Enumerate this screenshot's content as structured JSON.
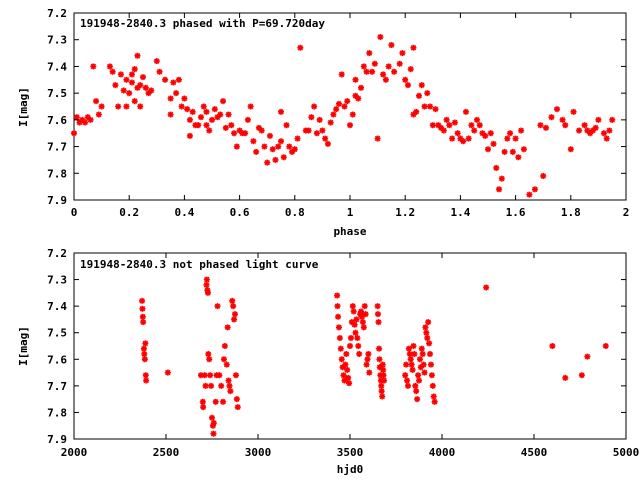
{
  "chart_data": [
    {
      "type": "scatter",
      "title": "191948-2840.3 phased with P=69.720day",
      "xlabel": "phase",
      "ylabel": "I[mag]",
      "xlim": [
        0,
        2
      ],
      "ylim": [
        7.9,
        7.2
      ],
      "y_inverted": true,
      "grid": false,
      "xticks": [
        0,
        0.2,
        0.4,
        0.6,
        0.8,
        1,
        1.2,
        1.4,
        1.6,
        1.8,
        2
      ],
      "yticks": [
        7.2,
        7.3,
        7.4,
        7.5,
        7.6,
        7.7,
        7.8,
        7.9
      ],
      "xtick_labels": [
        "0",
        "0.2",
        "0.4",
        "0.6",
        "0.8",
        "1",
        "1.2",
        "1.4",
        "1.6",
        "1.8",
        "2"
      ],
      "ytick_labels": [
        "7.2",
        "7.3",
        "7.4",
        "7.5",
        "7.6",
        "7.7",
        "7.8",
        "7.9"
      ],
      "marker_color": "#ff0000",
      "points": [
        [
          0.0,
          7.65
        ],
        [
          0.01,
          7.59
        ],
        [
          0.02,
          7.61
        ],
        [
          0.03,
          7.6
        ],
        [
          0.04,
          7.61
        ],
        [
          0.05,
          7.59
        ],
        [
          0.06,
          7.6
        ],
        [
          0.07,
          7.4
        ],
        [
          0.08,
          7.53
        ],
        [
          0.09,
          7.58
        ],
        [
          0.1,
          7.55
        ],
        [
          0.13,
          7.4
        ],
        [
          0.14,
          7.42
        ],
        [
          0.15,
          7.47
        ],
        [
          0.16,
          7.55
        ],
        [
          0.17,
          7.43
        ],
        [
          0.18,
          7.49
        ],
        [
          0.19,
          7.55
        ],
        [
          0.19,
          7.45
        ],
        [
          0.2,
          7.5
        ],
        [
          0.21,
          7.43
        ],
        [
          0.21,
          7.46
        ],
        [
          0.22,
          7.41
        ],
        [
          0.22,
          7.53
        ],
        [
          0.23,
          7.48
        ],
        [
          0.23,
          7.36
        ],
        [
          0.24,
          7.47
        ],
        [
          0.24,
          7.55
        ],
        [
          0.25,
          7.44
        ],
        [
          0.26,
          7.48
        ],
        [
          0.27,
          7.5
        ],
        [
          0.28,
          7.49
        ],
        [
          0.3,
          7.38
        ],
        [
          0.31,
          7.42
        ],
        [
          0.33,
          7.45
        ],
        [
          0.35,
          7.52
        ],
        [
          0.35,
          7.58
        ],
        [
          0.36,
          7.46
        ],
        [
          0.37,
          7.5
        ],
        [
          0.38,
          7.45
        ],
        [
          0.39,
          7.55
        ],
        [
          0.4,
          7.52
        ],
        [
          0.41,
          7.56
        ],
        [
          0.42,
          7.6
        ],
        [
          0.42,
          7.66
        ],
        [
          0.43,
          7.57
        ],
        [
          0.44,
          7.62
        ],
        [
          0.45,
          7.62
        ],
        [
          0.46,
          7.59
        ],
        [
          0.47,
          7.55
        ],
        [
          0.48,
          7.57
        ],
        [
          0.48,
          7.62
        ],
        [
          0.49,
          7.64
        ],
        [
          0.5,
          7.6
        ],
        [
          0.51,
          7.56
        ],
        [
          0.52,
          7.59
        ],
        [
          0.53,
          7.58
        ],
        [
          0.54,
          7.53
        ],
        [
          0.55,
          7.63
        ],
        [
          0.56,
          7.58
        ],
        [
          0.57,
          7.62
        ],
        [
          0.58,
          7.65
        ],
        [
          0.59,
          7.7
        ],
        [
          0.6,
          7.64
        ],
        [
          0.61,
          7.65
        ],
        [
          0.62,
          7.65
        ],
        [
          0.63,
          7.6
        ],
        [
          0.64,
          7.55
        ],
        [
          0.65,
          7.68
        ],
        [
          0.66,
          7.72
        ],
        [
          0.67,
          7.63
        ],
        [
          0.68,
          7.64
        ],
        [
          0.69,
          7.7
        ],
        [
          0.7,
          7.76
        ],
        [
          0.71,
          7.66
        ],
        [
          0.72,
          7.71
        ],
        [
          0.73,
          7.75
        ],
        [
          0.74,
          7.7
        ],
        [
          0.75,
          7.68
        ],
        [
          0.75,
          7.57
        ],
        [
          0.76,
          7.74
        ],
        [
          0.77,
          7.62
        ],
        [
          0.78,
          7.7
        ],
        [
          0.79,
          7.72
        ],
        [
          0.8,
          7.71
        ],
        [
          0.81,
          7.67
        ],
        [
          0.82,
          7.33
        ],
        [
          0.84,
          7.64
        ],
        [
          0.85,
          7.64
        ],
        [
          0.86,
          7.59
        ],
        [
          0.87,
          7.55
        ],
        [
          0.88,
          7.65
        ],
        [
          0.89,
          7.6
        ],
        [
          0.9,
          7.64
        ],
        [
          0.91,
          7.67
        ],
        [
          0.92,
          7.69
        ],
        [
          0.93,
          7.61
        ],
        [
          0.94,
          7.58
        ],
        [
          0.95,
          7.56
        ],
        [
          0.96,
          7.54
        ],
        [
          0.97,
          7.43
        ],
        [
          0.98,
          7.55
        ],
        [
          0.99,
          7.53
        ],
        [
          1.0,
          7.62
        ],
        [
          1.01,
          7.58
        ],
        [
          1.02,
          7.51
        ],
        [
          1.02,
          7.45
        ],
        [
          1.03,
          7.52
        ],
        [
          1.04,
          7.48
        ],
        [
          1.05,
          7.4
        ],
        [
          1.06,
          7.42
        ],
        [
          1.07,
          7.35
        ],
        [
          1.08,
          7.42
        ],
        [
          1.09,
          7.39
        ],
        [
          1.1,
          7.67
        ],
        [
          1.11,
          7.29
        ],
        [
          1.12,
          7.43
        ],
        [
          1.13,
          7.45
        ],
        [
          1.14,
          7.4
        ],
        [
          1.15,
          7.32
        ],
        [
          1.16,
          7.42
        ],
        [
          1.18,
          7.39
        ],
        [
          1.19,
          7.35
        ],
        [
          1.2,
          7.45
        ],
        [
          1.21,
          7.47
        ],
        [
          1.22,
          7.41
        ],
        [
          1.23,
          7.58
        ],
        [
          1.23,
          7.33
        ],
        [
          1.24,
          7.57
        ],
        [
          1.25,
          7.51
        ],
        [
          1.26,
          7.47
        ],
        [
          1.27,
          7.55
        ],
        [
          1.28,
          7.5
        ],
        [
          1.29,
          7.55
        ],
        [
          1.3,
          7.62
        ],
        [
          1.31,
          7.56
        ],
        [
          1.32,
          7.62
        ],
        [
          1.33,
          7.63
        ],
        [
          1.34,
          7.64
        ],
        [
          1.35,
          7.6
        ],
        [
          1.36,
          7.62
        ],
        [
          1.37,
          7.67
        ],
        [
          1.38,
          7.61
        ],
        [
          1.39,
          7.65
        ],
        [
          1.4,
          7.67
        ],
        [
          1.41,
          7.68
        ],
        [
          1.42,
          7.57
        ],
        [
          1.43,
          7.67
        ],
        [
          1.44,
          7.62
        ],
        [
          1.45,
          7.64
        ],
        [
          1.46,
          7.6
        ],
        [
          1.47,
          7.62
        ],
        [
          1.48,
          7.65
        ],
        [
          1.49,
          7.66
        ],
        [
          1.5,
          7.71
        ],
        [
          1.51,
          7.65
        ],
        [
          1.52,
          7.69
        ],
        [
          1.53,
          7.78
        ],
        [
          1.54,
          7.86
        ],
        [
          1.55,
          7.82
        ],
        [
          1.56,
          7.72
        ],
        [
          1.57,
          7.67
        ],
        [
          1.58,
          7.65
        ],
        [
          1.59,
          7.72
        ],
        [
          1.6,
          7.67
        ],
        [
          1.61,
          7.74
        ],
        [
          1.62,
          7.64
        ],
        [
          1.63,
          7.71
        ],
        [
          1.65,
          7.88
        ],
        [
          1.67,
          7.86
        ],
        [
          1.69,
          7.62
        ],
        [
          1.7,
          7.81
        ],
        [
          1.71,
          7.63
        ],
        [
          1.73,
          7.59
        ],
        [
          1.75,
          7.56
        ],
        [
          1.77,
          7.6
        ],
        [
          1.78,
          7.62
        ],
        [
          1.8,
          7.71
        ],
        [
          1.81,
          7.57
        ],
        [
          1.83,
          7.64
        ],
        [
          1.85,
          7.62
        ],
        [
          1.86,
          7.64
        ],
        [
          1.87,
          7.65
        ],
        [
          1.88,
          7.64
        ],
        [
          1.89,
          7.63
        ],
        [
          1.9,
          7.6
        ],
        [
          1.92,
          7.65
        ],
        [
          1.93,
          7.67
        ],
        [
          1.94,
          7.64
        ],
        [
          1.95,
          7.6
        ]
      ]
    },
    {
      "type": "scatter",
      "title": "191948-2840.3 not phased light curve",
      "xlabel": "hjd0",
      "ylabel": "I[mag]",
      "xlim": [
        2000,
        5000
      ],
      "ylim": [
        7.9,
        7.2
      ],
      "y_inverted": true,
      "grid": false,
      "xticks": [
        2000,
        2500,
        3000,
        3500,
        4000,
        4500,
        5000
      ],
      "yticks": [
        7.2,
        7.3,
        7.4,
        7.5,
        7.6,
        7.7,
        7.8,
        7.9
      ],
      "xtick_labels": [
        "2000",
        "2500",
        "3000",
        "3500",
        "4000",
        "4500",
        "5000"
      ],
      "ytick_labels": [
        "7.2",
        "7.3",
        "7.4",
        "7.5",
        "7.6",
        "7.7",
        "7.8",
        "7.9"
      ],
      "marker_color": "#ff0000",
      "points": [
        [
          2370,
          7.38
        ],
        [
          2372,
          7.41
        ],
        [
          2374,
          7.44
        ],
        [
          2376,
          7.46
        ],
        [
          2380,
          7.56
        ],
        [
          2382,
          7.58
        ],
        [
          2385,
          7.6
        ],
        [
          2388,
          7.54
        ],
        [
          2390,
          7.66
        ],
        [
          2392,
          7.68
        ],
        [
          2510,
          7.65
        ],
        [
          2690,
          7.66
        ],
        [
          2700,
          7.76
        ],
        [
          2702,
          7.78
        ],
        [
          2710,
          7.66
        ],
        [
          2715,
          7.7
        ],
        [
          2720,
          7.32
        ],
        [
          2722,
          7.3
        ],
        [
          2725,
          7.34
        ],
        [
          2728,
          7.35
        ],
        [
          2730,
          7.58
        ],
        [
          2735,
          7.6
        ],
        [
          2740,
          7.66
        ],
        [
          2745,
          7.7
        ],
        [
          2750,
          7.82
        ],
        [
          2755,
          7.85
        ],
        [
          2758,
          7.88
        ],
        [
          2760,
          7.84
        ],
        [
          2770,
          7.76
        ],
        [
          2775,
          7.66
        ],
        [
          2780,
          7.4
        ],
        [
          2790,
          7.66
        ],
        [
          2800,
          7.7
        ],
        [
          2810,
          7.76
        ],
        [
          2815,
          7.6
        ],
        [
          2820,
          7.55
        ],
        [
          2830,
          7.62
        ],
        [
          2835,
          7.48
        ],
        [
          2840,
          7.68
        ],
        [
          2845,
          7.7
        ],
        [
          2850,
          7.72
        ],
        [
          2860,
          7.38
        ],
        [
          2865,
          7.4
        ],
        [
          2870,
          7.45
        ],
        [
          2875,
          7.43
        ],
        [
          2880,
          7.66
        ],
        [
          2885,
          7.75
        ],
        [
          2890,
          7.78
        ],
        [
          3430,
          7.36
        ],
        [
          3432,
          7.4
        ],
        [
          3435,
          7.44
        ],
        [
          3440,
          7.48
        ],
        [
          3445,
          7.52
        ],
        [
          3450,
          7.56
        ],
        [
          3455,
          7.6
        ],
        [
          3460,
          7.63
        ],
        [
          3465,
          7.66
        ],
        [
          3470,
          7.68
        ],
        [
          3475,
          7.62
        ],
        [
          3480,
          7.58
        ],
        [
          3485,
          7.64
        ],
        [
          3490,
          7.67
        ],
        [
          3495,
          7.69
        ],
        [
          3500,
          7.55
        ],
        [
          3505,
          7.52
        ],
        [
          3510,
          7.46
        ],
        [
          3515,
          7.4
        ],
        [
          3520,
          7.42
        ],
        [
          3525,
          7.47
        ],
        [
          3530,
          7.5
        ],
        [
          3535,
          7.45
        ],
        [
          3540,
          7.52
        ],
        [
          3545,
          7.55
        ],
        [
          3550,
          7.58
        ],
        [
          3555,
          7.43
        ],
        [
          3560,
          7.42
        ],
        [
          3565,
          7.44
        ],
        [
          3570,
          7.46
        ],
        [
          3575,
          7.48
        ],
        [
          3580,
          7.4
        ],
        [
          3585,
          7.43
        ],
        [
          3590,
          7.62
        ],
        [
          3595,
          7.6
        ],
        [
          3600,
          7.58
        ],
        [
          3605,
          7.65
        ],
        [
          3650,
          7.4
        ],
        [
          3652,
          7.43
        ],
        [
          3655,
          7.46
        ],
        [
          3658,
          7.56
        ],
        [
          3660,
          7.6
        ],
        [
          3662,
          7.63
        ],
        [
          3665,
          7.66
        ],
        [
          3668,
          7.68
        ],
        [
          3670,
          7.7
        ],
        [
          3672,
          7.72
        ],
        [
          3675,
          7.74
        ],
        [
          3678,
          7.62
        ],
        [
          3680,
          7.64
        ],
        [
          3682,
          7.66
        ],
        [
          3685,
          7.68
        ],
        [
          3800,
          7.66
        ],
        [
          3805,
          7.62
        ],
        [
          3810,
          7.68
        ],
        [
          3815,
          7.7
        ],
        [
          3820,
          7.56
        ],
        [
          3825,
          7.58
        ],
        [
          3830,
          7.6
        ],
        [
          3835,
          7.62
        ],
        [
          3840,
          7.64
        ],
        [
          3845,
          7.55
        ],
        [
          3850,
          7.58
        ],
        [
          3855,
          7.7
        ],
        [
          3860,
          7.72
        ],
        [
          3865,
          7.75
        ],
        [
          3870,
          7.66
        ],
        [
          3875,
          7.68
        ],
        [
          3880,
          7.6
        ],
        [
          3885,
          7.63
        ],
        [
          3890,
          7.56
        ],
        [
          3895,
          7.58
        ],
        [
          3900,
          7.62
        ],
        [
          3905,
          7.65
        ],
        [
          3910,
          7.48
        ],
        [
          3915,
          7.5
        ],
        [
          3920,
          7.52
        ],
        [
          3925,
          7.46
        ],
        [
          3930,
          7.54
        ],
        [
          3935,
          7.58
        ],
        [
          3940,
          7.62
        ],
        [
          3945,
          7.66
        ],
        [
          3950,
          7.7
        ],
        [
          3955,
          7.74
        ],
        [
          3960,
          7.76
        ],
        [
          4240,
          7.33
        ],
        [
          4600,
          7.55
        ],
        [
          4670,
          7.67
        ],
        [
          4760,
          7.66
        ],
        [
          4790,
          7.59
        ],
        [
          4890,
          7.55
        ]
      ]
    }
  ]
}
